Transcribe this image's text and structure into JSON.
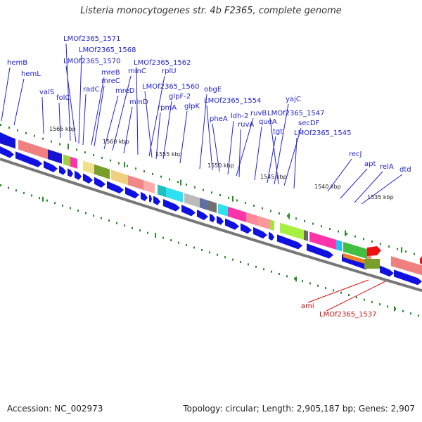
{
  "title": "Listeria monocytogenes str. 4b F2365, complete genome",
  "footer": {
    "accession": "Accession: NC_002973",
    "topology": "Topology: circular; Length: 2,905,187 bp; Genes: 2,907"
  },
  "tick_labels": [
    "1565 kbp",
    "1560 kbp",
    "1555 kbp",
    "1550 kbp",
    "1545 kbp",
    "1540 kbp",
    "1535 kbp"
  ],
  "gene_labels_blue": [
    "hemB",
    "hemL",
    "valS",
    "folC",
    "LMOf2365_1571",
    "LMOf2365_1568",
    "LMOf2365_1570",
    "radC",
    "mreB",
    "mreC",
    "mreD",
    "minC",
    "minD",
    "LMOf2365_1562",
    "rplU",
    "LMOf2365_1560",
    "rpmA",
    "glpF-2",
    "glpK",
    "obgE",
    "LMOf2365_1554",
    "pheA",
    "ldh-2",
    "ruvB",
    "ruvA",
    "queA",
    "yajC",
    "LMOf2365_1547",
    "tgt",
    "secDF",
    "LMOf2365_1545",
    "recJ",
    "apt",
    "relA",
    "dtd"
  ],
  "gene_labels_red": [
    "ami",
    "LMOf2365_1537"
  ],
  "colors": {
    "gene_label_blue": "#2222cc",
    "gene_label_red": "#cc1111",
    "forward_cds": "#1010e0",
    "backbone": "#777777",
    "tick": "#2a8a2a"
  }
}
